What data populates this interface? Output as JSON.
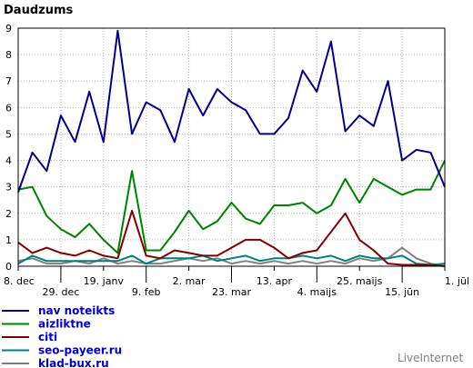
{
  "chart_data": {
    "type": "line",
    "title": "Daudzums",
    "ylim": [
      0,
      9
    ],
    "yticks": [
      "0",
      "1",
      "2",
      "3",
      "4",
      "5",
      "6",
      "7",
      "8",
      "9"
    ],
    "grid": true,
    "xticks_row1": [
      "8. dec",
      "19. janv",
      "2. mar",
      "13. apr",
      "25. maijs",
      "1. jūl"
    ],
    "xticks_row2": [
      "29. dec",
      "9. feb",
      "23. mar",
      "4. maijs",
      "15. jūn"
    ],
    "x": [
      "8. dec",
      "15. dec",
      "22. dec",
      "29. dec",
      "5. janv",
      "12. janv",
      "19. janv",
      "26. janv",
      "2. feb",
      "9. feb",
      "16. feb",
      "23. feb",
      "2. mar",
      "9. mar",
      "16. mar",
      "23. mar",
      "30. mar",
      "6. apr",
      "13. apr",
      "20. apr",
      "27. apr",
      "4. maijs",
      "11. maijs",
      "18. maijs",
      "25. maijs",
      "1. jūn",
      "8. jūn",
      "15. jūn",
      "22. jūn",
      "29. jūn",
      "1. jūl"
    ],
    "series": [
      {
        "name": "nav noteikts",
        "color": "#000080",
        "values": [
          2.8,
          4.3,
          3.6,
          5.7,
          4.7,
          6.6,
          4.7,
          8.9,
          5.0,
          6.2,
          5.9,
          4.7,
          6.7,
          5.7,
          6.7,
          6.2,
          5.9,
          5.0,
          5.0,
          5.6,
          7.4,
          6.6,
          8.5,
          5.1,
          5.7,
          5.3,
          7.0,
          4.0,
          4.4,
          4.3,
          3.0
        ]
      },
      {
        "name": "aizliktne",
        "color": "#008000",
        "values": [
          2.9,
          3.0,
          1.9,
          1.4,
          1.1,
          1.6,
          1.0,
          0.5,
          3.6,
          0.6,
          0.6,
          1.3,
          2.1,
          1.4,
          1.7,
          2.4,
          1.8,
          1.6,
          2.3,
          2.3,
          2.4,
          2.0,
          2.3,
          3.3,
          2.4,
          3.3,
          3.0,
          2.7,
          2.9,
          2.9,
          4.0
        ]
      },
      {
        "name": "citi",
        "color": "#800000",
        "values": [
          0.9,
          0.5,
          0.7,
          0.5,
          0.4,
          0.6,
          0.4,
          0.3,
          2.1,
          0.4,
          0.3,
          0.6,
          0.5,
          0.4,
          0.4,
          0.7,
          1.0,
          1.0,
          0.7,
          0.3,
          0.5,
          0.6,
          1.3,
          2.0,
          1.0,
          0.6,
          0.1,
          0.05,
          0.05,
          0.05,
          0.0
        ]
      },
      {
        "name": "seo-payeer.ru",
        "color": "#008080",
        "values": [
          0.1,
          0.4,
          0.2,
          0.2,
          0.2,
          0.2,
          0.2,
          0.2,
          0.4,
          0.1,
          0.3,
          0.3,
          0.3,
          0.4,
          0.2,
          0.3,
          0.4,
          0.2,
          0.3,
          0.3,
          0.4,
          0.3,
          0.4,
          0.2,
          0.4,
          0.3,
          0.3,
          0.4,
          0.1,
          0.05,
          0.1
        ]
      },
      {
        "name": "klad-bux.ru",
        "color": "#808080",
        "values": [
          0.2,
          0.3,
          0.1,
          0.1,
          0.2,
          0.1,
          0.3,
          0.1,
          0.2,
          0.1,
          0.1,
          0.2,
          0.3,
          0.2,
          0.3,
          0.1,
          0.2,
          0.1,
          0.2,
          0.1,
          0.2,
          0.1,
          0.2,
          0.1,
          0.3,
          0.2,
          0.3,
          0.7,
          0.3,
          0.1,
          0.0
        ]
      }
    ]
  },
  "watermark": "LiveInternet"
}
